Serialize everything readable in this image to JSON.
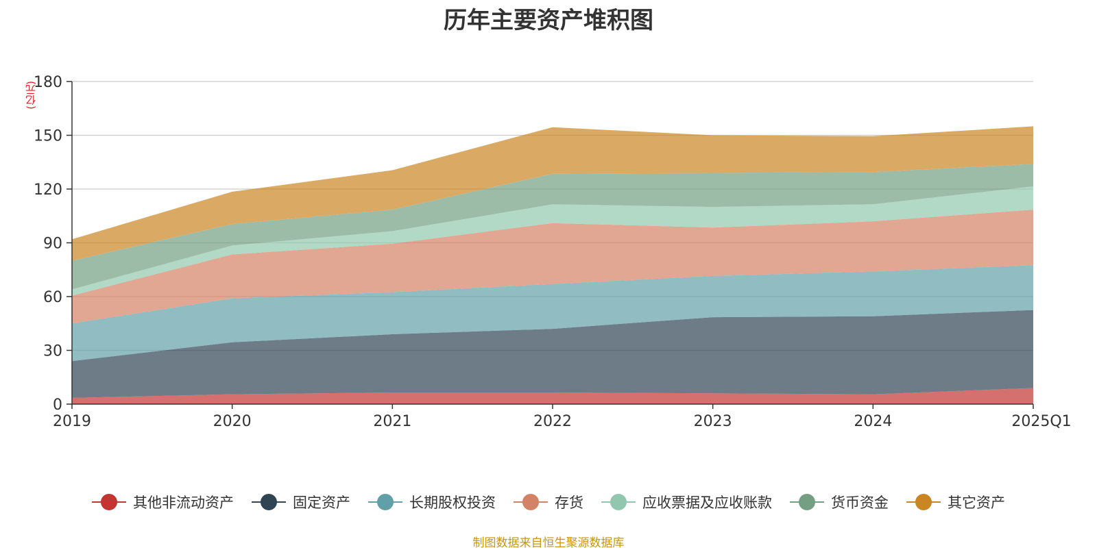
{
  "chart_data": {
    "type": "area",
    "stacked": true,
    "title": "历年主要资产堆积图",
    "unit_label": "(亿元)",
    "x": [
      "2019",
      "2020",
      "2021",
      "2022",
      "2023",
      "2024",
      "2025Q1"
    ],
    "ylim": [
      0,
      180
    ],
    "yticks": [
      0,
      30,
      60,
      90,
      120,
      150,
      180
    ],
    "grid": true,
    "legend_position": "bottom",
    "series": [
      {
        "name": "其他非流动资产",
        "color": "#c23531",
        "values": [
          3.5,
          5.5,
          6.5,
          6.5,
          6,
          5.5,
          9
        ]
      },
      {
        "name": "固定资产",
        "color": "#2f4554",
        "values": [
          20.5,
          29,
          32.5,
          35.5,
          42.5,
          43.5,
          43.5
        ]
      },
      {
        "name": "长期股权投资",
        "color": "#61a0a8",
        "values": [
          21,
          24.5,
          23.5,
          25,
          23,
          25,
          25
        ]
      },
      {
        "name": "存货",
        "color": "#d48265",
        "values": [
          15.5,
          24.5,
          27,
          34,
          27,
          28,
          31
        ]
      },
      {
        "name": "应收票据及应收账款",
        "color": "#91c7ae",
        "values": [
          3.5,
          5,
          7,
          10.5,
          11.5,
          9.5,
          13
        ]
      },
      {
        "name": "货币资金",
        "color": "#749f83",
        "values": [
          16,
          12,
          12,
          17,
          19,
          18,
          12.5
        ]
      },
      {
        "name": "其它资产",
        "color": "#ca8622",
        "values": [
          12,
          18,
          22,
          26,
          21,
          20,
          21
        ]
      }
    ]
  },
  "source_note": "制图数据来自恒生聚源数据库"
}
